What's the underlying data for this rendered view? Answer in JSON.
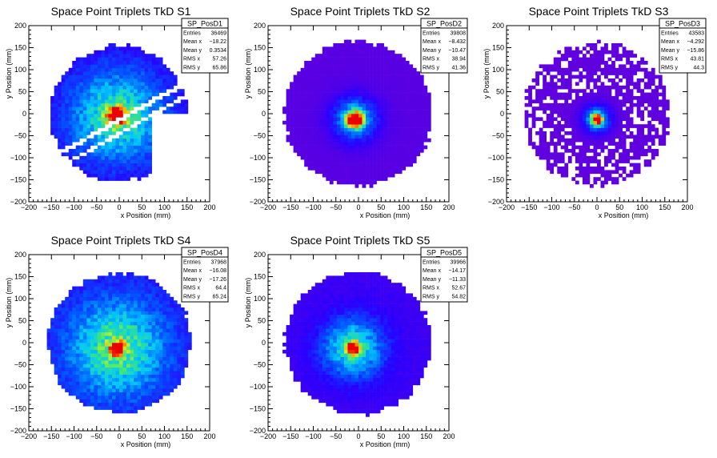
{
  "chart_data": [
    {
      "type": "heatmap",
      "title": "Space Point Triplets TkD S1",
      "xlabel": "x Position (mm)",
      "ylabel": "y Position (mm)",
      "xlim": [
        -200,
        200
      ],
      "ylim": [
        -200,
        200
      ],
      "xticks": [
        -200,
        -150,
        -100,
        -50,
        0,
        50,
        100,
        150,
        200
      ],
      "yticks": [
        -200,
        -150,
        -100,
        -50,
        0,
        50,
        100,
        150,
        200
      ],
      "stats": {
        "name": "SP_PosD1",
        "rows": [
          [
            "Entries",
            "36469"
          ],
          [
            "Mean x",
            "-18.22"
          ],
          [
            "Mean y",
            "0.3534"
          ],
          [
            "RMS x",
            "57.26"
          ],
          [
            "RMS y",
            "65.86"
          ]
        ]
      },
      "distribution": {
        "center": [
          -5,
          -5
        ],
        "radius": 150,
        "peak_sigma": 14,
        "broad_sigma": 75,
        "bg_level": 0.12,
        "gaps": true
      }
    },
    {
      "type": "heatmap",
      "title": "Space Point Triplets TkD S2",
      "xlabel": "x Position (mm)",
      "ylabel": "y Position (mm)",
      "xlim": [
        -200,
        200
      ],
      "ylim": [
        -200,
        200
      ],
      "xticks": [
        -200,
        -150,
        -100,
        -50,
        0,
        50,
        100,
        150,
        200
      ],
      "yticks": [
        -200,
        -150,
        -100,
        -50,
        0,
        50,
        100,
        150,
        200
      ],
      "stats": {
        "name": "SP_PosD2",
        "rows": [
          [
            "Entries",
            "39808"
          ],
          [
            "Mean x",
            "-8.432"
          ],
          [
            "Mean y",
            "-10.47"
          ],
          [
            "RMS x",
            "38.94"
          ],
          [
            "RMS y",
            "41.36"
          ]
        ]
      },
      "distribution": {
        "center": [
          -8,
          -12
        ],
        "radius": 160,
        "peak_sigma": 12,
        "broad_sigma": 35,
        "bg_level": 0.03,
        "gaps": false
      }
    },
    {
      "type": "heatmap",
      "title": "Space Point Triplets TkD S3",
      "xlabel": "x Position (mm)",
      "ylabel": "y Position (mm)",
      "xlim": [
        -200,
        200
      ],
      "ylim": [
        -200,
        200
      ],
      "xticks": [
        -200,
        -150,
        -100,
        -50,
        0,
        50,
        100,
        150,
        200
      ],
      "yticks": [
        -200,
        -150,
        -100,
        -50,
        0,
        50,
        100,
        150,
        200
      ],
      "stats": {
        "name": "SP_PosD3",
        "rows": [
          [
            "Entries",
            "43583"
          ],
          [
            "Mean x",
            "-4.292"
          ],
          [
            "Mean y",
            "-15.86"
          ],
          [
            "RMS x",
            "43.81"
          ],
          [
            "RMS y",
            "44.3"
          ]
        ]
      },
      "distribution": {
        "center": [
          0,
          -12
        ],
        "radius": 158,
        "peak_sigma": 8,
        "broad_sigma": 22,
        "bg_level": 0.01,
        "gaps": false
      }
    },
    {
      "type": "heatmap",
      "title": "Space Point Triplets TkD S4",
      "xlabel": "x Position (mm)",
      "ylabel": "y Position (mm)",
      "xlim": [
        -200,
        200
      ],
      "ylim": [
        -200,
        200
      ],
      "xticks": [
        -200,
        -150,
        -100,
        -50,
        0,
        50,
        100,
        150,
        200
      ],
      "yticks": [
        -200,
        -150,
        -100,
        -50,
        0,
        50,
        100,
        150,
        200
      ],
      "stats": {
        "name": "SP_PosD4",
        "rows": [
          [
            "Entries",
            "37968"
          ],
          [
            "Mean x",
            "-16.08"
          ],
          [
            "Mean y",
            "-17.26"
          ],
          [
            "RMS x",
            "64.4"
          ],
          [
            "RMS y",
            "65.24"
          ]
        ]
      },
      "distribution": {
        "center": [
          -5,
          -12
        ],
        "radius": 155,
        "peak_sigma": 10,
        "broad_sigma": 70,
        "bg_level": 0.18,
        "gaps": false
      }
    },
    {
      "type": "heatmap",
      "title": "Space Point Triplets TkD S5",
      "xlabel": "x Position (mm)",
      "ylabel": "y Position (mm)",
      "xlim": [
        -200,
        200
      ],
      "ylim": [
        -200,
        200
      ],
      "xticks": [
        -200,
        -150,
        -100,
        -50,
        0,
        50,
        100,
        150,
        200
      ],
      "yticks": [
        -200,
        -150,
        -100,
        -50,
        0,
        50,
        100,
        150,
        200
      ],
      "stats": {
        "name": "SP_PosD5",
        "rows": [
          [
            "Entries",
            "39966"
          ],
          [
            "Mean x",
            "-14.17"
          ],
          [
            "Mean y",
            "-11.33"
          ],
          [
            "RMS x",
            "52.67"
          ],
          [
            "RMS y",
            "54.82"
          ]
        ]
      },
      "distribution": {
        "center": [
          -12,
          -12
        ],
        "radius": 158,
        "peak_sigma": 10,
        "broad_sigma": 48,
        "bg_level": 0.1,
        "gaps": false
      }
    }
  ]
}
